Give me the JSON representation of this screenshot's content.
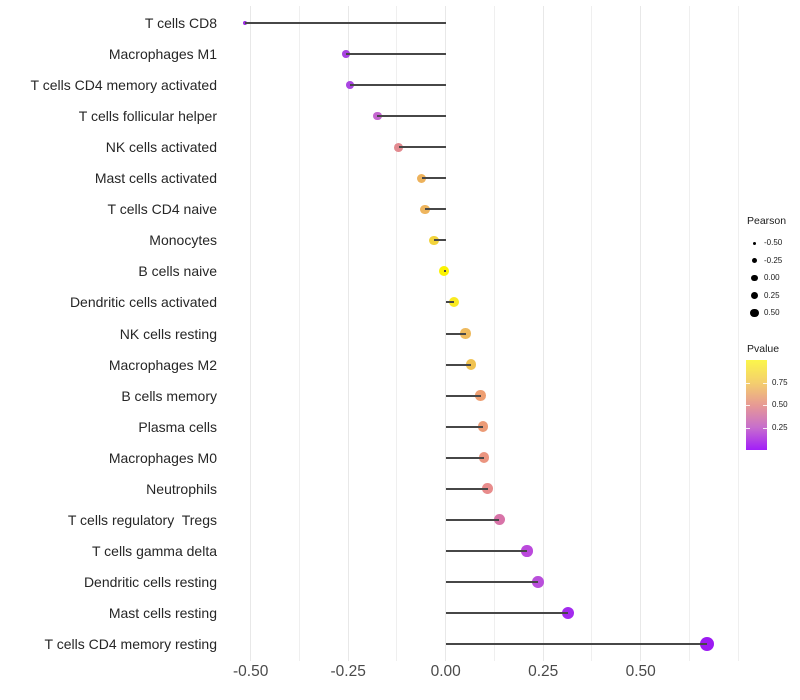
{
  "chart_data": {
    "type": "lollipop",
    "title": "",
    "xlabel": "",
    "ylabel": "",
    "description": "Horizontal lollipop chart of Pearson correlation per immune cell type; point size = Pearson, point color = Pvalue",
    "x_axis": {
      "tick_labels": [
        "-0.50",
        "-0.25",
        "0.00",
        "0.25",
        "0.50"
      ],
      "tick_values": [
        -0.5,
        -0.25,
        0,
        0.25,
        0.5
      ],
      "minor_step": 0.125,
      "grid_values": [
        -0.5,
        -0.375,
        -0.25,
        -0.125,
        0,
        0.125,
        0.25,
        0.375,
        0.5,
        0.625,
        0.75
      ],
      "range": [
        -0.574,
        0.767
      ]
    },
    "rows": [
      {
        "label": "T cells CD8",
        "pearson": -0.515,
        "pvalue": 0.03,
        "color": "#9b2ce2"
      },
      {
        "label": "Macrophages M1",
        "pearson": -0.256,
        "pvalue": 0.13,
        "color": "#a843e1"
      },
      {
        "label": "T cells CD4 memory activated",
        "pearson": -0.245,
        "pvalue": 0.14,
        "color": "#aa46e2"
      },
      {
        "label": "T cells follicular helper",
        "pearson": -0.175,
        "pvalue": 0.27,
        "color": "#c466cf"
      },
      {
        "label": "NK cells activated",
        "pearson": -0.12,
        "pvalue": 0.46,
        "color": "#e28a90"
      },
      {
        "label": "Mast cells activated",
        "pearson": -0.062,
        "pvalue": 0.68,
        "color": "#edb25c"
      },
      {
        "label": "T cells CD4 naive",
        "pearson": -0.053,
        "pvalue": 0.69,
        "color": "#eeb55e"
      },
      {
        "label": "Monocytes",
        "pearson": -0.03,
        "pvalue": 0.8,
        "color": "#f2d33c"
      },
      {
        "label": "B cells naive",
        "pearson": -0.005,
        "pvalue": 0.97,
        "color": "#fbf303"
      },
      {
        "label": "Dendritic cells activated",
        "pearson": 0.022,
        "pvalue": 0.93,
        "color": "#f9ea21"
      },
      {
        "label": "NK cells resting",
        "pearson": 0.051,
        "pvalue": 0.7,
        "color": "#eeba5e"
      },
      {
        "label": "Macrophages M2",
        "pearson": 0.065,
        "pvalue": 0.73,
        "color": "#f0c251"
      },
      {
        "label": "B cells memory",
        "pearson": 0.09,
        "pvalue": 0.56,
        "color": "#ee9f72"
      },
      {
        "label": "Plasma cells",
        "pearson": 0.096,
        "pvalue": 0.55,
        "color": "#ec9b76"
      },
      {
        "label": "Macrophages M0",
        "pearson": 0.098,
        "pvalue": 0.52,
        "color": "#eb9580"
      },
      {
        "label": "Neutrophils",
        "pearson": 0.108,
        "pvalue": 0.47,
        "color": "#e88c8c"
      },
      {
        "label": "T cells regulatory  Tregs",
        "pearson": 0.137,
        "pvalue": 0.36,
        "color": "#d873a8"
      },
      {
        "label": "T cells gamma delta",
        "pearson": 0.209,
        "pvalue": 0.21,
        "color": "#bb49dc"
      },
      {
        "label": "Dendritic cells resting",
        "pearson": 0.236,
        "pvalue": 0.2,
        "color": "#b94fdb"
      },
      {
        "label": "Mast cells resting",
        "pearson": 0.314,
        "pvalue": 0.07,
        "color": "#a32bee"
      },
      {
        "label": "T cells CD4 memory resting",
        "pearson": 0.67,
        "pvalue": 0.005,
        "color": "#9c1af2"
      }
    ],
    "legend_size": {
      "title": "Pearson",
      "entries": [
        {
          "label": "-0.50",
          "value": -0.5
        },
        {
          "label": "-0.25",
          "value": -0.25
        },
        {
          "label": "0.00",
          "value": 0
        },
        {
          "label": "0.25",
          "value": 0.25
        },
        {
          "label": "0.50",
          "value": 0.5
        }
      ]
    },
    "legend_color": {
      "title": "Pvalue",
      "ticks": [
        {
          "label": "0.75",
          "value": 0.75
        },
        {
          "label": "0.50",
          "value": 0.5
        },
        {
          "label": "0.25",
          "value": 0.25
        }
      ],
      "range": [
        0,
        1
      ],
      "gradient_stops": [
        {
          "p": 0,
          "color": "#a21ef9"
        },
        {
          "p": 0.25,
          "color": "#c76ecd"
        },
        {
          "p": 0.5,
          "color": "#e79a94"
        },
        {
          "p": 0.75,
          "color": "#f4cf6d"
        },
        {
          "p": 1,
          "color": "#fbf64b"
        }
      ]
    },
    "colors": {
      "stem": "#474747",
      "grid_major": "#e8e8e8",
      "grid_minor": "#efefef",
      "axis_text": "#4a4a4a",
      "label_text": "#262626",
      "legend_text": "#1a1a1a",
      "legend_dot": "#000000",
      "background": "#ffffff"
    }
  }
}
